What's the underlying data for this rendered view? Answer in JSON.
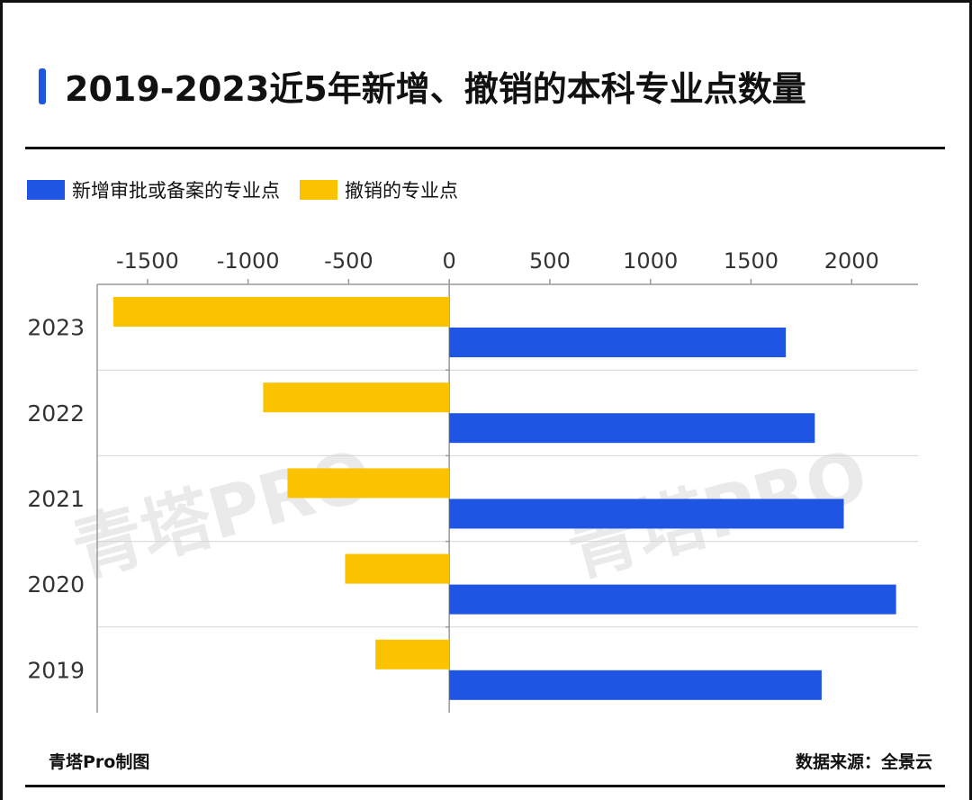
{
  "title": "2019-2023近5年新增、撤销的本科专业点数量",
  "legend": [
    {
      "label": "新增审批或备案的专业点",
      "color": "#1f55e3"
    },
    {
      "label": "撤销的专业点",
      "color": "#fbc200"
    }
  ],
  "watermark": "青塔PRO",
  "footer": {
    "left": "青塔Pro制图",
    "right": "数据来源：全景云"
  },
  "chart_data": {
    "type": "bar",
    "orientation": "horizontal",
    "categories": [
      "2023",
      "2022",
      "2021",
      "2020",
      "2019"
    ],
    "series": [
      {
        "name": "新增审批或备案的专业点",
        "color": "#1f55e3",
        "values": [
          1673,
          1817,
          1961,
          2221,
          1851
        ]
      },
      {
        "name": "撤销的专业点",
        "color": "#fbc200",
        "values": [
          -1670,
          -925,
          -804,
          -518,
          -367
        ]
      }
    ],
    "xlim": [
      -1750,
      2330
    ],
    "xticks": [
      -1500,
      -1000,
      -500,
      0,
      500,
      1000,
      1500,
      2000
    ],
    "xtick_labels": [
      "-1500",
      "-1000",
      "-500",
      "0",
      "500",
      "1000",
      "1500",
      "2000"
    ],
    "axis_position": "top",
    "grid": true
  }
}
